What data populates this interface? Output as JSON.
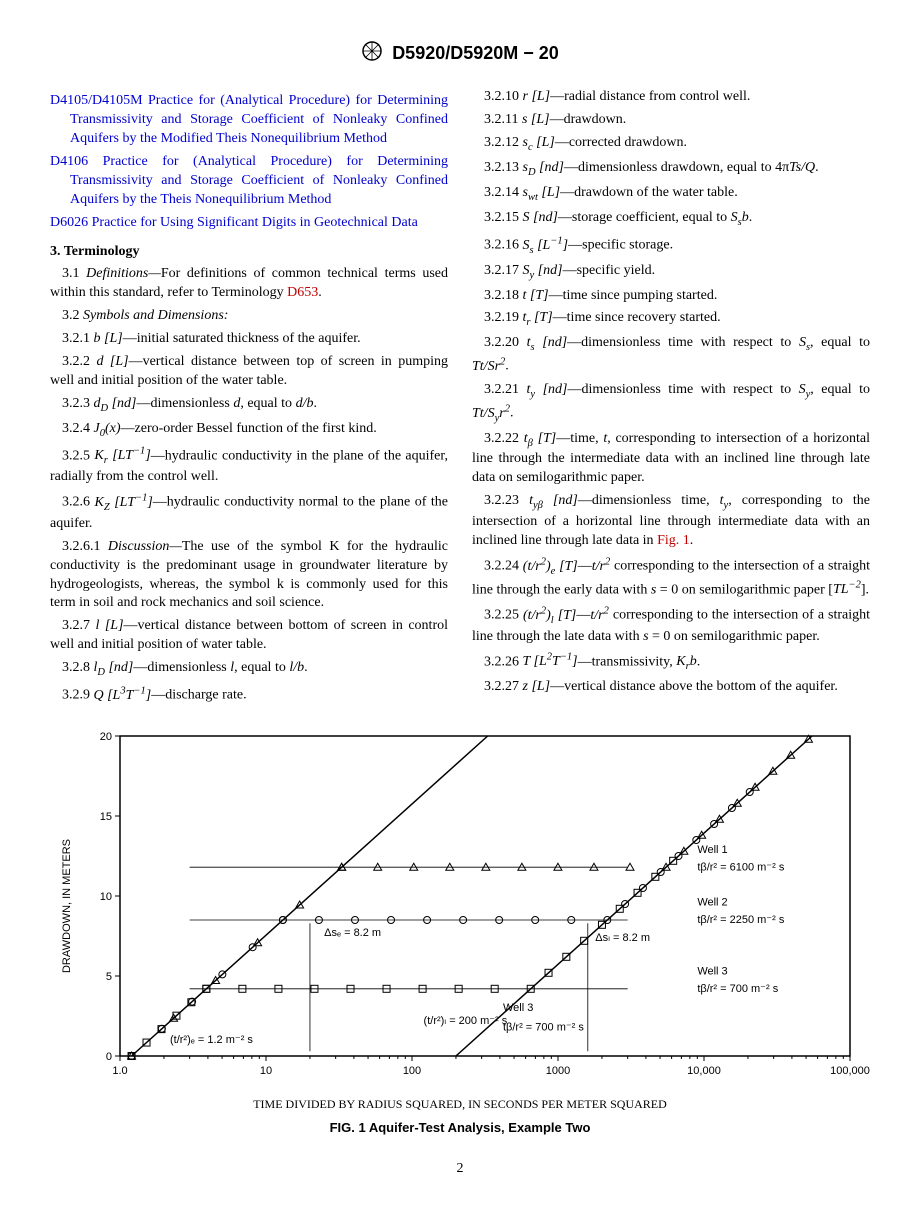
{
  "header": {
    "designation": "D5920/D5920M − 20"
  },
  "refs": [
    {
      "label": "D4105/D4105M",
      "desc": "Practice for (Analytical Procedure) for Determining Transmissivity and Storage Coefficient of Nonleaky Confined Aquifers by the Modified Theis Nonequilibrium Method"
    },
    {
      "label": "D4106",
      "desc": "Practice for (Analytical Procedure) for Determining Transmissivity and Storage Coefficient of Nonleaky Confined Aquifers by the Theis Nonequilibrium Method"
    },
    {
      "label": "D6026",
      "desc": "Practice for Using Significant Digits in Geotechnical Data"
    }
  ],
  "section3": {
    "title": "3. Terminology",
    "def_intro_a": "3.1 ",
    "def_intro_b": "Definitions—",
    "def_intro_c": "For definitions of common technical terms used within this standard, refer to Terminology ",
    "def_link": "D653",
    "symbols_heading_a": "3.2 ",
    "symbols_heading_b": "Symbols and Dimensions:",
    "items_left": [
      {
        "num": "3.2.1",
        "sym": "b [L]",
        "desc": "—initial saturated thickness of the aquifer."
      },
      {
        "num": "3.2.2",
        "sym": "d [L]",
        "desc": "—vertical distance between top of screen in pumping well and initial position of the water table."
      },
      {
        "num": "3.2.3",
        "sym": "dD [nd]",
        "desc": "—dimensionless d, equal to d/b.",
        "sub": "D"
      },
      {
        "num": "3.2.4",
        "sym": "J0(x)",
        "desc": "—zero-order Bessel function of the first kind.",
        "sub": "0"
      },
      {
        "num": "3.2.5",
        "sym": "Kr [LT−1]",
        "desc": "—hydraulic conductivity in the plane of the aquifer, radially from the control well.",
        "sub": "r"
      },
      {
        "num": "3.2.6",
        "sym": "KZ [LT−1]",
        "desc": "—hydraulic conductivity normal to the plane of the aquifer.",
        "sub": "Z"
      }
    ],
    "discussion_a": "3.2.6.1 ",
    "discussion_b": "Discussion—",
    "discussion_c": "The use of the symbol K for the hydraulic conductivity is the predominant usage in groundwater literature by hydrogeologists, whereas, the symbol k is commonly used for this term in soil and rock mechanics and soil science.",
    "items_left2": [
      {
        "num": "3.2.7",
        "sym": "l [L]",
        "desc": "—vertical distance between bottom of screen in control well and initial position of water table."
      },
      {
        "num": "3.2.8",
        "sym": "lD [nd]",
        "desc": "—dimensionless l, equal to l/b.",
        "sub": "D"
      },
      {
        "num": "3.2.9",
        "sym": "Q [L3T−1]",
        "desc": "—discharge rate."
      }
    ],
    "items_right": [
      {
        "num": "3.2.10",
        "sym": "r [L]",
        "desc": "—radial distance from control well."
      },
      {
        "num": "3.2.11",
        "sym": "s [L]",
        "desc": "—drawdown."
      },
      {
        "num": "3.2.12",
        "sym": "sc [L]",
        "desc": "—corrected drawdown.",
        "sub": "c"
      },
      {
        "num": "3.2.13",
        "sym": "sD [nd]",
        "desc": "—dimensionless drawdown, equal to 4πTs/Q.",
        "sub": "D"
      },
      {
        "num": "3.2.14",
        "sym": "swt [L]",
        "desc": "—drawdown of the water table.",
        "sub": "wt"
      },
      {
        "num": "3.2.15",
        "sym": "S [nd]",
        "desc": "—storage coefficient, equal to Ssb."
      },
      {
        "num": "3.2.16",
        "sym": "Ss [L−1]",
        "desc": "—specific storage.",
        "sub": "s"
      },
      {
        "num": "3.2.17",
        "sym": "Sy [nd]",
        "desc": "—specific yield.",
        "sub": "y"
      },
      {
        "num": "3.2.18",
        "sym": "t [T]",
        "desc": "—time since pumping started."
      },
      {
        "num": "3.2.19",
        "sym": "tr [T]",
        "desc": "—time since recovery started.",
        "sub": "r"
      },
      {
        "num": "3.2.20",
        "sym": "ts [nd]",
        "desc": "—dimensionless time with respect to Ss, equal to Tt/Sr2.",
        "sub": "s"
      },
      {
        "num": "3.2.21",
        "sym": "ty [nd]",
        "desc": "—dimensionless time with respect to Sy, equal to Tt/Syr2.",
        "sub": "y"
      },
      {
        "num": "3.2.22",
        "sym": "tβ [T]",
        "desc": "—time, t, corresponding to intersection of a horizontal line through the intermediate data with an inclined line through late data on semilogarithmic paper.",
        "sub": "β"
      },
      {
        "num": "3.2.23",
        "sym": "tyβ [nd]",
        "desc": "—dimensionless time, ty, corresponding to the intersection of a horizontal line through intermediate data with an inclined line through late data in ",
        "sub": "yβ",
        "link": "Fig. 1"
      },
      {
        "num": "3.2.24",
        "sym": "(t/r2)e [T]",
        "desc": "—t/r2 corresponding to the intersection of a straight line through the early data with s = 0 on semilogarithmic paper [TL−2].",
        "sub": "e"
      },
      {
        "num": "3.2.25",
        "sym": "(t/r2)l [T]",
        "desc": "—t/r2 corresponding to the intersection of a straight line through the late data with s = 0 on semilogarithmic paper.",
        "sub": "l"
      },
      {
        "num": "3.2.26",
        "sym": "T [L2T−1]",
        "desc": "—transmissivity, Krb."
      },
      {
        "num": "3.2.27",
        "sym": "z [L]",
        "desc": "—vertical distance above the bottom of the aquifer."
      }
    ]
  },
  "figure": {
    "xlabel": "TIME DIVIDED BY RADIUS SQUARED, IN SECONDS PER METER SQUARED",
    "ylabel": "DRAWDOWN, IN METERS",
    "title": "FIG. 1  Aquifer-Test Analysis, Example Two",
    "ylim": [
      0,
      20
    ],
    "yticks": [
      0,
      5,
      10,
      15,
      20
    ],
    "xlim_log": [
      1.0,
      100000
    ],
    "xticks": [
      "1.0",
      "10",
      "100",
      "1000",
      "10,000",
      "100,000"
    ],
    "plot_bg": "#ffffff",
    "axis_color": "#000000",
    "series": [
      {
        "name": "Well 1",
        "marker": "triangle",
        "plateau": 11.8,
        "label": "Well 1",
        "annot": "tβ/r² = 6100 m⁻² s"
      },
      {
        "name": "Well 2",
        "marker": "circle",
        "plateau": 8.5,
        "label": "Well 2",
        "annot": "tβ/r² = 2250 m⁻² s"
      },
      {
        "name": "Well 3",
        "marker": "square",
        "plateau": 4.2,
        "label": "Well 3",
        "annot": "tβ/r² = 700 m⁻² s"
      }
    ],
    "annotations": {
      "dse": "Δsₑ = 8.2 m",
      "dsl": "Δsₗ = 8.2 m",
      "tre": "(t/r²)ₑ = 1.2  m⁻² s",
      "trl": "(t/r²)ₗ = 200 m⁻² s"
    }
  },
  "page_number": "2"
}
